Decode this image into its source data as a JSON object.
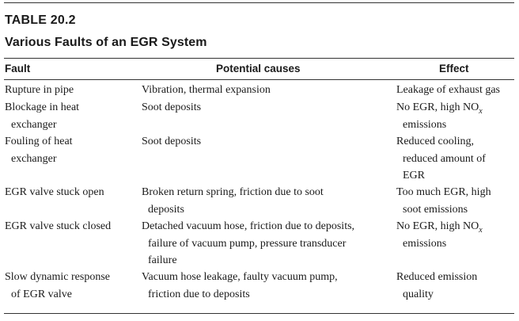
{
  "table": {
    "label": "TABLE 20.2",
    "title": "Various Faults of an EGR System",
    "columns": {
      "fault": "Fault",
      "causes": "Potential causes",
      "effect": "Effect"
    },
    "rows": [
      {
        "fault": [
          "Rupture in pipe"
        ],
        "causes": [
          "Vibration, thermal expansion"
        ],
        "effect": [
          "Leakage of exhaust gas"
        ]
      },
      {
        "fault": [
          "Blockage in heat",
          "exchanger"
        ],
        "causes": [
          "Soot deposits"
        ],
        "effect": [
          "No EGR, high NO",
          "emissions"
        ],
        "effect_sub": "x"
      },
      {
        "fault": [
          "Fouling of heat",
          "exchanger"
        ],
        "causes": [
          "Soot deposits"
        ],
        "effect": [
          "Reduced cooling,",
          "reduced amount of",
          "EGR"
        ]
      },
      {
        "fault": [
          "EGR valve stuck open"
        ],
        "causes": [
          "Broken return spring, friction due to soot",
          "deposits"
        ],
        "effect": [
          "Too much EGR, high",
          "soot emissions"
        ]
      },
      {
        "fault": [
          "EGR valve stuck closed"
        ],
        "causes": [
          "Detached vacuum hose, friction due to deposits,",
          "failure of vacuum pump, pressure transducer",
          "failure"
        ],
        "effect": [
          "No EGR, high NO",
          "emissions"
        ],
        "effect_sub": "x"
      },
      {
        "fault": [
          "Slow dynamic response",
          "of EGR valve"
        ],
        "causes": [
          "Vacuum hose leakage, faulty vacuum pump,",
          "friction due to deposits"
        ],
        "effect": [
          "Reduced emission",
          "quality"
        ]
      }
    ]
  }
}
